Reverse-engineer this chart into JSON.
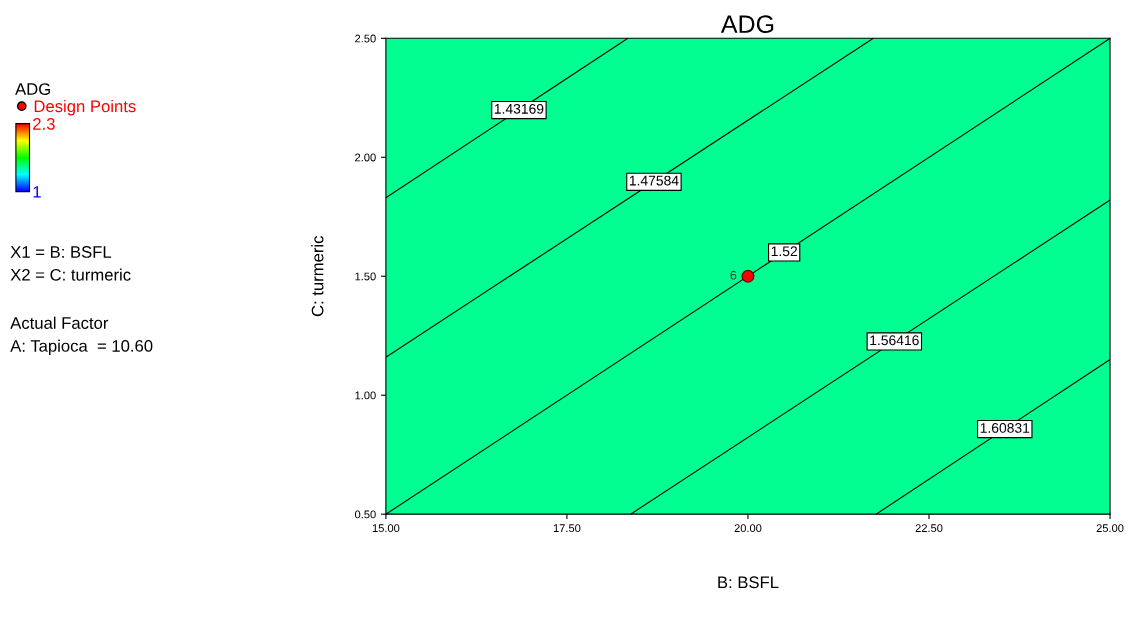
{
  "chart_data": {
    "type": "line",
    "title": "ADG",
    "xlabel": "B: BSFL",
    "ylabel": "C: turmeric",
    "legend_title": "ADG",
    "legend": "top left",
    "grid": false,
    "xlim": [
      15,
      25
    ],
    "ylim": [
      0.5,
      2.5
    ],
    "xticks": [
      {
        "value": 15,
        "label": "15.00"
      },
      {
        "value": 17.5,
        "label": "17.50"
      },
      {
        "value": 20,
        "label": "20.00"
      },
      {
        "value": 22.5,
        "label": "22.50"
      },
      {
        "value": 25,
        "label": "25.00"
      }
    ],
    "yticks": [
      {
        "value": 0.5,
        "label": "0.50"
      },
      {
        "value": 1,
        "label": "1.00"
      },
      {
        "value": 1.5,
        "label": "1.50"
      },
      {
        "value": 2,
        "label": "2.00"
      },
      {
        "value": 2.5,
        "label": "2.50"
      }
    ],
    "clim": [
      1,
      2.3
    ],
    "cticks": [
      1,
      2.3
    ],
    "series": [
      {
        "type": "line",
        "name": "1.43169",
        "color": "#000000",
        "x": [
          15,
          18.34
        ],
        "values": [
          1.83,
          2.5
        ]
      },
      {
        "type": "line",
        "name": "1.47584",
        "color": "#000000",
        "x": [
          15,
          21.73
        ],
        "values": [
          1.16,
          2.5
        ]
      },
      {
        "type": "line",
        "name": "1.52",
        "color": "#000000",
        "x": [
          15,
          25
        ],
        "values": [
          0.5,
          2.5
        ]
      },
      {
        "type": "line",
        "name": "1.56416",
        "color": "#000000",
        "x": [
          18.38,
          25
        ],
        "values": [
          0.5,
          1.82
        ]
      },
      {
        "type": "line",
        "name": "1.60831",
        "color": "#000000",
        "x": [
          21.77,
          25
        ],
        "values": [
          0.5,
          1.15
        ]
      },
      {
        "type": "scatter",
        "name": "Design Points",
        "color": "#ff0000",
        "x": [
          20
        ],
        "values": [
          1.5
        ]
      }
    ],
    "annotations": [
      {
        "text": "6",
        "x": 20,
        "y": 1.5
      },
      "X1 = B: BSFL",
      "X2 = C: turmeric",
      "Actual Factor",
      "A: Tapioca  = 10.60"
    ]
  }
}
